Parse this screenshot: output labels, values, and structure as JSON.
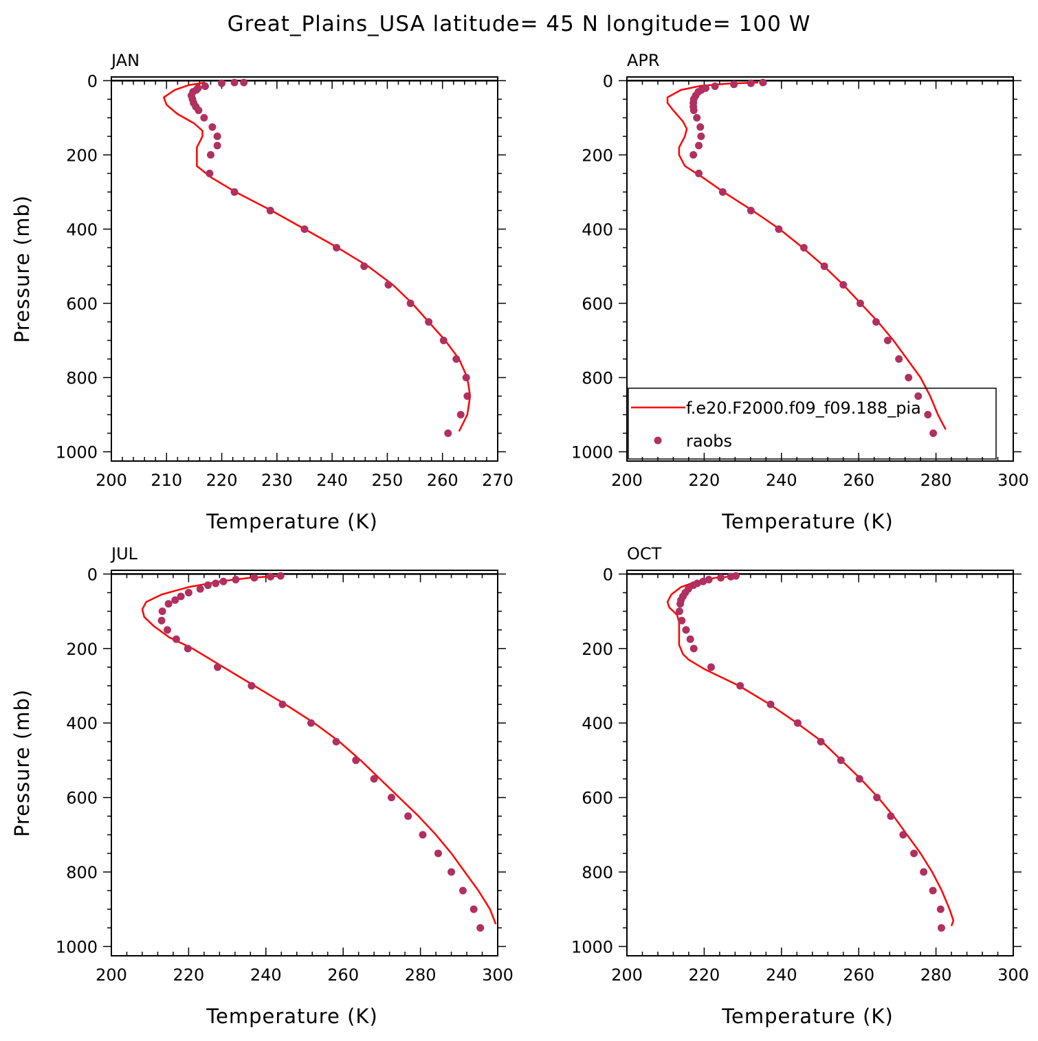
{
  "title": "Great_Plains_USA  latitude= 45 N longitude= 100 W",
  "colors": {
    "model": "#ff0000",
    "obs": "#b03060"
  },
  "legend": {
    "model_label": "f.e20.F2000.f09_f09.188_pia",
    "obs_label": "raobs",
    "panel": "APR"
  },
  "chart_data": [
    {
      "type": "line",
      "panel": "JAN",
      "title": "JAN",
      "xlabel": "Temperature (K)",
      "ylabel": "Pressure (mb)",
      "xlim": [
        200,
        270
      ],
      "ylim": [
        1000,
        0
      ],
      "xticks": [
        200,
        210,
        220,
        230,
        240,
        250,
        260,
        270
      ],
      "yticks": [
        0,
        200,
        400,
        600,
        800,
        1000
      ],
      "series": [
        {
          "name": "f.e20.F2000.f09_f09.188_pia",
          "kind": "line",
          "points": [
            [
              217,
              5
            ],
            [
              214,
              12
            ],
            [
              211.5,
              25
            ],
            [
              209.5,
              45
            ],
            [
              210,
              65
            ],
            [
              212,
              90
            ],
            [
              215,
              115
            ],
            [
              216.5,
              135
            ],
            [
              216.5,
              150
            ],
            [
              215.5,
              180
            ],
            [
              215.5,
              230
            ],
            [
              218,
              260
            ],
            [
              222.5,
              300
            ],
            [
              229,
              350
            ],
            [
              235,
              400
            ],
            [
              241,
              450
            ],
            [
              246.5,
              500
            ],
            [
              251,
              550
            ],
            [
              254.5,
              600
            ],
            [
              257.5,
              650
            ],
            [
              260.5,
              700
            ],
            [
              263,
              750
            ],
            [
              264.5,
              800
            ],
            [
              265,
              850
            ],
            [
              264.5,
              900
            ],
            [
              263,
              945
            ]
          ]
        },
        {
          "name": "raobs",
          "kind": "scatter",
          "points": [
            [
              224,
              5
            ],
            [
              222.3,
              5
            ],
            [
              220,
              7
            ],
            [
              217,
              15
            ],
            [
              215.7,
              20
            ],
            [
              215.4,
              25
            ],
            [
              214.8,
              30
            ],
            [
              214.5,
              40
            ],
            [
              214.7,
              50
            ],
            [
              214.9,
              60
            ],
            [
              215.3,
              70
            ],
            [
              215.8,
              80
            ],
            [
              216.8,
              100
            ],
            [
              218.3,
              125
            ],
            [
              219.2,
              150
            ],
            [
              219.2,
              175
            ],
            [
              218,
              200
            ],
            [
              217.8,
              250
            ],
            [
              222.3,
              300
            ],
            [
              228.8,
              350
            ],
            [
              235,
              400
            ],
            [
              240.8,
              450
            ],
            [
              245.8,
              500
            ],
            [
              250.2,
              550
            ],
            [
              254.2,
              600
            ],
            [
              257.5,
              650
            ],
            [
              260.2,
              700
            ],
            [
              262.5,
              750
            ],
            [
              264.3,
              800
            ],
            [
              264.5,
              850
            ],
            [
              263.3,
              900
            ],
            [
              261,
              950
            ]
          ]
        }
      ]
    },
    {
      "type": "line",
      "panel": "APR",
      "title": "APR",
      "xlabel": "Temperature (K)",
      "ylabel": "",
      "xlim": [
        200,
        300
      ],
      "ylim": [
        1000,
        0
      ],
      "xticks": [
        200,
        220,
        240,
        260,
        280,
        300
      ],
      "yticks": [
        0,
        200,
        400,
        600,
        800,
        1000
      ],
      "series": [
        {
          "name": "f.e20.F2000.f09_f09.188_pia",
          "kind": "line",
          "points": [
            [
              234,
              5
            ],
            [
              226,
              8
            ],
            [
              219,
              14
            ],
            [
              214,
              25
            ],
            [
              210.5,
              45
            ],
            [
              210.5,
              60
            ],
            [
              212,
              80
            ],
            [
              214.5,
              110
            ],
            [
              215.5,
              130
            ],
            [
              215,
              150
            ],
            [
              213.5,
              180
            ],
            [
              213.5,
              200
            ],
            [
              215,
              230
            ],
            [
              219.5,
              260
            ],
            [
              225,
              300
            ],
            [
              232.5,
              350
            ],
            [
              239.5,
              400
            ],
            [
              245.5,
              450
            ],
            [
              251,
              500
            ],
            [
              256,
              550
            ],
            [
              260.5,
              600
            ],
            [
              265,
              650
            ],
            [
              269,
              700
            ],
            [
              272.5,
              750
            ],
            [
              276,
              800
            ],
            [
              278.5,
              850
            ],
            [
              280.5,
              900
            ],
            [
              282.5,
              940
            ]
          ]
        },
        {
          "name": "raobs",
          "kind": "scatter",
          "points": [
            [
              235.2,
              5
            ],
            [
              232.1,
              7
            ],
            [
              227.7,
              10
            ],
            [
              222.8,
              15
            ],
            [
              220.4,
              20
            ],
            [
              219.3,
              25
            ],
            [
              218.5,
              30
            ],
            [
              217.8,
              40
            ],
            [
              217.3,
              50
            ],
            [
              217.2,
              60
            ],
            [
              217.2,
              70
            ],
            [
              217.3,
              80
            ],
            [
              218.1,
              100
            ],
            [
              219,
              125
            ],
            [
              219.2,
              150
            ],
            [
              218.6,
              175
            ],
            [
              217.2,
              200
            ],
            [
              218.6,
              250
            ],
            [
              224.8,
              300
            ],
            [
              232.1,
              350
            ],
            [
              239.3,
              400
            ],
            [
              245.8,
              450
            ],
            [
              251.1,
              500
            ],
            [
              256,
              550
            ],
            [
              260.4,
              600
            ],
            [
              264.5,
              650
            ],
            [
              267.5,
              700
            ],
            [
              270.4,
              750
            ],
            [
              272.9,
              800
            ],
            [
              275.4,
              850
            ],
            [
              277.9,
              900
            ],
            [
              279.3,
              950
            ]
          ]
        }
      ]
    },
    {
      "type": "line",
      "panel": "JUL",
      "title": "JUL",
      "xlabel": "Temperature (K)",
      "ylabel": "Pressure (mb)",
      "xlim": [
        200,
        300
      ],
      "ylim": [
        1000,
        0
      ],
      "xticks": [
        200,
        220,
        240,
        260,
        280,
        300
      ],
      "yticks": [
        0,
        200,
        400,
        600,
        800,
        1000
      ],
      "series": [
        {
          "name": "f.e20.F2000.f09_f09.188_pia",
          "kind": "line",
          "points": [
            [
              244,
              5
            ],
            [
              236,
              10
            ],
            [
              228,
              20
            ],
            [
              220,
              35
            ],
            [
              213,
              55
            ],
            [
              209,
              75
            ],
            [
              208,
              95
            ],
            [
              208.5,
              115
            ],
            [
              211,
              140
            ],
            [
              215,
              170
            ],
            [
              221,
              200
            ],
            [
              229,
              250
            ],
            [
              237,
              300
            ],
            [
              245,
              350
            ],
            [
              252.5,
              400
            ],
            [
              259,
              450
            ],
            [
              264.5,
              500
            ],
            [
              269.5,
              550
            ],
            [
              274.5,
              600
            ],
            [
              279.5,
              650
            ],
            [
              284,
              700
            ],
            [
              288,
              750
            ],
            [
              291.5,
              800
            ],
            [
              295,
              850
            ],
            [
              298,
              900
            ],
            [
              299.5,
              940
            ]
          ]
        },
        {
          "name": "raobs",
          "kind": "scatter",
          "points": [
            [
              243.8,
              5
            ],
            [
              241.2,
              7
            ],
            [
              237,
              10
            ],
            [
              232.2,
              15
            ],
            [
              229,
              20
            ],
            [
              227,
              25
            ],
            [
              225,
              30
            ],
            [
              223,
              40
            ],
            [
              220,
              50
            ],
            [
              218,
              60
            ],
            [
              216.5,
              70
            ],
            [
              214.8,
              80
            ],
            [
              213.2,
              100
            ],
            [
              213,
              125
            ],
            [
              214.5,
              150
            ],
            [
              216.8,
              175
            ],
            [
              219.8,
              200
            ],
            [
              227.5,
              250
            ],
            [
              236.3,
              300
            ],
            [
              244.3,
              350
            ],
            [
              251.7,
              400
            ],
            [
              258.2,
              450
            ],
            [
              263.3,
              500
            ],
            [
              268,
              550
            ],
            [
              272.5,
              600
            ],
            [
              276.8,
              650
            ],
            [
              280.6,
              700
            ],
            [
              284.6,
              750
            ],
            [
              288,
              800
            ],
            [
              291,
              850
            ],
            [
              293.8,
              900
            ],
            [
              295.5,
              950
            ]
          ]
        }
      ]
    },
    {
      "type": "line",
      "panel": "OCT",
      "title": "OCT",
      "xlabel": "Temperature (K)",
      "ylabel": "",
      "xlim": [
        200,
        300
      ],
      "ylim": [
        1000,
        0
      ],
      "xticks": [
        200,
        220,
        240,
        260,
        280,
        300
      ],
      "yticks": [
        0,
        200,
        400,
        600,
        800,
        1000
      ],
      "series": [
        {
          "name": "f.e20.F2000.f09_f09.188_pia",
          "kind": "line",
          "points": [
            [
              229,
              5
            ],
            [
              223,
              10
            ],
            [
              218,
              20
            ],
            [
              214,
              35
            ],
            [
              211.5,
              55
            ],
            [
              210.5,
              75
            ],
            [
              211,
              90
            ],
            [
              213,
              110
            ],
            [
              213.5,
              130
            ],
            [
              213.5,
              150
            ],
            [
              213.5,
              190
            ],
            [
              214.5,
              215
            ],
            [
              216,
              230
            ],
            [
              220,
              255
            ],
            [
              229,
              300
            ],
            [
              237,
              350
            ],
            [
              244,
              400
            ],
            [
              250.5,
              450
            ],
            [
              255.5,
              500
            ],
            [
              260.5,
              550
            ],
            [
              265,
              600
            ],
            [
              269,
              650
            ],
            [
              272.5,
              700
            ],
            [
              276,
              750
            ],
            [
              279,
              800
            ],
            [
              281.5,
              850
            ],
            [
              283.5,
              900
            ],
            [
              284.5,
              930
            ],
            [
              284,
              945
            ]
          ]
        },
        {
          "name": "raobs",
          "kind": "scatter",
          "points": [
            [
              228.2,
              5
            ],
            [
              226.9,
              7
            ],
            [
              224.3,
              10
            ],
            [
              221.2,
              15
            ],
            [
              219.7,
              20
            ],
            [
              218.2,
              25
            ],
            [
              217.2,
              30
            ],
            [
              215.9,
              40
            ],
            [
              215.1,
              50
            ],
            [
              214.5,
              60
            ],
            [
              214,
              70
            ],
            [
              213.8,
              80
            ],
            [
              213.6,
              100
            ],
            [
              214.2,
              125
            ],
            [
              215.3,
              150
            ],
            [
              216.4,
              175
            ],
            [
              217.3,
              200
            ],
            [
              221.8,
              250
            ],
            [
              229.3,
              300
            ],
            [
              237.2,
              350
            ],
            [
              244.2,
              400
            ],
            [
              250.2,
              450
            ],
            [
              255.4,
              500
            ],
            [
              260.2,
              550
            ],
            [
              264.7,
              600
            ],
            [
              268.3,
              650
            ],
            [
              271.5,
              700
            ],
            [
              274.3,
              750
            ],
            [
              276.8,
              800
            ],
            [
              279.2,
              850
            ],
            [
              281.2,
              900
            ],
            [
              281.4,
              950
            ]
          ]
        }
      ]
    }
  ]
}
